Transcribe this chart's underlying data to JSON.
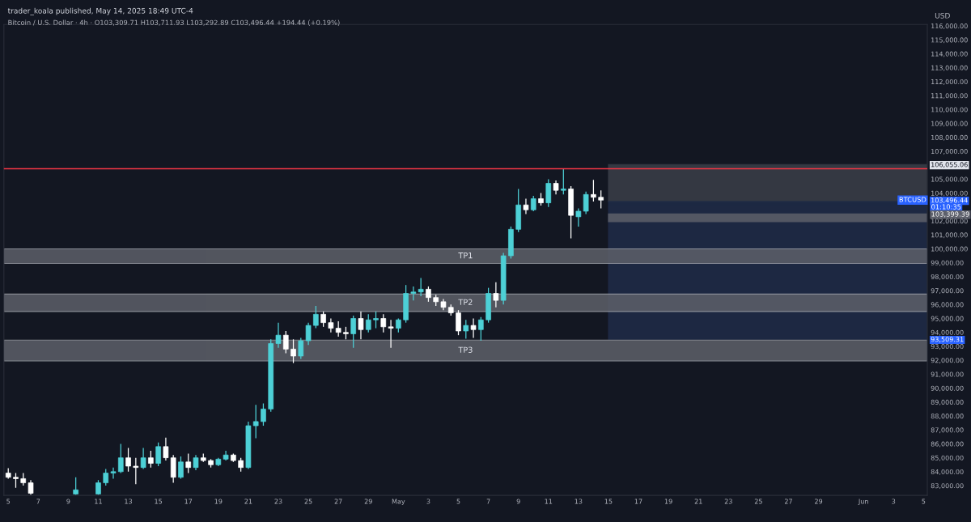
{
  "chart_data": {
    "type": "candlestick",
    "title": "trader_koala published, May 14, 2025 18:49 UTC-4",
    "subtitle": "Bitcoin / U.S. Dollar · 4h · O103,309.71 H103,711.93 L103,292.89 C103,496.44 +194.44 (+0.19%)",
    "ylabel": "USD",
    "x": [
      "2025-04-05T00:00",
      "2025-04-05T12:00",
      "2025-04-06T00:00",
      "2025-04-06T12:00",
      "2025-04-09T12:00",
      "2025-04-11T00:00",
      "2025-04-11T12:00",
      "2025-04-12T00:00",
      "2025-04-12T12:00",
      "2025-04-13T00:00",
      "2025-04-13T12:00",
      "2025-04-14T00:00",
      "2025-04-14T12:00",
      "2025-04-15T00:00",
      "2025-04-15T12:00",
      "2025-04-16T00:00",
      "2025-04-16T12:00",
      "2025-04-17T00:00",
      "2025-04-17T12:00",
      "2025-04-18T00:00",
      "2025-04-18T12:00",
      "2025-04-19T00:00",
      "2025-04-19T12:00",
      "2025-04-20T00:00",
      "2025-04-20T12:00",
      "2025-04-21T00:00",
      "2025-04-21T12:00",
      "2025-04-22T00:00",
      "2025-04-22T12:00",
      "2025-04-23T00:00",
      "2025-04-23T12:00",
      "2025-04-24T00:00",
      "2025-04-24T12:00",
      "2025-04-25T00:00",
      "2025-04-25T12:00",
      "2025-04-26T00:00",
      "2025-04-26T12:00",
      "2025-04-27T00:00",
      "2025-04-27T12:00",
      "2025-04-28T00:00",
      "2025-04-28T12:00",
      "2025-04-29T00:00",
      "2025-04-29T12:00",
      "2025-04-30T00:00",
      "2025-04-30T12:00",
      "2025-05-01T00:00",
      "2025-05-01T12:00",
      "2025-05-02T00:00",
      "2025-05-02T12:00",
      "2025-05-03T00:00",
      "2025-05-03T12:00",
      "2025-05-04T00:00",
      "2025-05-04T12:00",
      "2025-05-05T00:00",
      "2025-05-05T12:00",
      "2025-05-06T00:00",
      "2025-05-06T12:00",
      "2025-05-07T00:00",
      "2025-05-07T12:00",
      "2025-05-08T00:00",
      "2025-05-08T12:00",
      "2025-05-09T00:00",
      "2025-05-09T12:00",
      "2025-05-10T00:00",
      "2025-05-10T12:00",
      "2025-05-11T00:00",
      "2025-05-11T12:00",
      "2025-05-12T00:00",
      "2025-05-12T12:00",
      "2025-05-13T00:00",
      "2025-05-13T12:00",
      "2025-05-14T00:00",
      "2025-05-14T12:00"
    ],
    "ohlc": [
      [
        83900,
        84250,
        83500,
        83600
      ],
      [
        83600,
        83900,
        82850,
        83500
      ],
      [
        83500,
        83900,
        83000,
        83200
      ],
      [
        83200,
        83400,
        82350,
        82450
      ],
      [
        82400,
        83600,
        82350,
        82700
      ],
      [
        82400,
        83400,
        82350,
        83200
      ],
      [
        83200,
        84200,
        83000,
        83900
      ],
      [
        83900,
        84300,
        83500,
        84000
      ],
      [
        84000,
        86000,
        83900,
        85000
      ],
      [
        85000,
        85700,
        84000,
        84400
      ],
      [
        84400,
        85000,
        83100,
        84300
      ],
      [
        84300,
        85700,
        84200,
        85000
      ],
      [
        85000,
        85500,
        84300,
        84600
      ],
      [
        84600,
        86100,
        84400,
        85800
      ],
      [
        85800,
        86450,
        84800,
        85000
      ],
      [
        85000,
        85200,
        83200,
        83600
      ],
      [
        83600,
        85100,
        83500,
        84700
      ],
      [
        84700,
        85300,
        83900,
        84300
      ],
      [
        84300,
        85200,
        84100,
        85000
      ],
      [
        85000,
        85300,
        84700,
        84800
      ],
      [
        84800,
        84900,
        84300,
        84500
      ],
      [
        84500,
        85000,
        84400,
        84900
      ],
      [
        84900,
        85500,
        84800,
        85200
      ],
      [
        85200,
        85300,
        84700,
        84800
      ],
      [
        84800,
        85000,
        84000,
        84300
      ],
      [
        84300,
        87600,
        84200,
        87300
      ],
      [
        87300,
        88800,
        86400,
        87600
      ],
      [
        87600,
        88900,
        87300,
        88500
      ],
      [
        88500,
        93500,
        88300,
        93200
      ],
      [
        93200,
        94700,
        92900,
        93800
      ],
      [
        93800,
        94100,
        92500,
        92800
      ],
      [
        92800,
        93500,
        91800,
        92300
      ],
      [
        92300,
        93600,
        92100,
        93400
      ],
      [
        93400,
        94700,
        93100,
        94500
      ],
      [
        94500,
        95900,
        94300,
        95300
      ],
      [
        95300,
        95500,
        94400,
        94700
      ],
      [
        94700,
        95000,
        94000,
        94300
      ],
      [
        94300,
        94800,
        93700,
        94000
      ],
      [
        94000,
        94400,
        93500,
        93900
      ],
      [
        93900,
        95200,
        92900,
        95000
      ],
      [
        95000,
        95500,
        93500,
        94200
      ],
      [
        94200,
        95300,
        94000,
        94900
      ],
      [
        94900,
        95500,
        94300,
        95000
      ],
      [
        95000,
        95300,
        94000,
        94400
      ],
      [
        94400,
        94900,
        92900,
        94300
      ],
      [
        94300,
        95000,
        94000,
        94900
      ],
      [
        94900,
        97400,
        94700,
        96800
      ],
      [
        96800,
        97300,
        96300,
        96900
      ],
      [
        96900,
        97900,
        96600,
        97100
      ],
      [
        97100,
        97300,
        96200,
        96500
      ],
      [
        96500,
        96700,
        95900,
        96200
      ],
      [
        96200,
        96400,
        95600,
        95800
      ],
      [
        95800,
        96000,
        95200,
        95400
      ],
      [
        95400,
        95600,
        93800,
        94100
      ],
      [
        94100,
        94900,
        93550,
        94500
      ],
      [
        94500,
        95000,
        93600,
        94200
      ],
      [
        94200,
        95100,
        93400,
        94900
      ],
      [
        94900,
        97200,
        94700,
        96800
      ],
      [
        96800,
        97600,
        95800,
        96300
      ],
      [
        96300,
        99700,
        96000,
        99500
      ],
      [
        99500,
        101600,
        99300,
        101400
      ],
      [
        101400,
        104300,
        101200,
        103150
      ],
      [
        103150,
        103600,
        102500,
        102800
      ],
      [
        102800,
        103800,
        102700,
        103600
      ],
      [
        103600,
        104000,
        103100,
        103300
      ],
      [
        103300,
        105000,
        103000,
        104700
      ],
      [
        104700,
        104900,
        103900,
        104200
      ],
      [
        104200,
        105750,
        103900,
        104300
      ],
      [
        104300,
        104500,
        100750,
        102400
      ],
      [
        102300,
        102900,
        101600,
        102700
      ],
      [
        102700,
        104100,
        102500,
        103900
      ],
      [
        103900,
        104950,
        103400,
        103700
      ],
      [
        103700,
        104200,
        102900,
        103496.44
      ]
    ],
    "colors": [
      "#ffffff",
      "#ffffff",
      "#ffffff",
      "#ffffff",
      "#4dd0d6",
      "#4dd0d6",
      "#4dd0d6",
      "#4dd0d6",
      "#4dd0d6",
      "#ffffff",
      "#ffffff",
      "#4dd0d6",
      "#ffffff",
      "#4dd0d6",
      "#ffffff",
      "#ffffff",
      "#4dd0d6",
      "#ffffff",
      "#4dd0d6",
      "#ffffff",
      "#ffffff",
      "#4dd0d6",
      "#4dd0d6",
      "#ffffff",
      "#ffffff",
      "#4dd0d6",
      "#4dd0d6",
      "#4dd0d6",
      "#4dd0d6",
      "#4dd0d6",
      "#ffffff",
      "#ffffff",
      "#4dd0d6",
      "#4dd0d6",
      "#4dd0d6",
      "#ffffff",
      "#ffffff",
      "#ffffff",
      "#ffffff",
      "#4dd0d6",
      "#ffffff",
      "#4dd0d6",
      "#4dd0d6",
      "#ffffff",
      "#ffffff",
      "#4dd0d6",
      "#4dd0d6",
      "#4dd0d6",
      "#4dd0d6",
      "#ffffff",
      "#ffffff",
      "#ffffff",
      "#ffffff",
      "#ffffff",
      "#4dd0d6",
      "#ffffff",
      "#4dd0d6",
      "#4dd0d6",
      "#ffffff",
      "#4dd0d6",
      "#4dd0d6",
      "#4dd0d6",
      "#ffffff",
      "#4dd0d6",
      "#ffffff",
      "#4dd0d6",
      "#ffffff",
      "#4dd0d6",
      "#ffffff",
      "#4dd0d6",
      "#4dd0d6",
      "#ffffff",
      "#ffffff"
    ],
    "xlim": [
      "2025-04-04T17:00",
      "2025-06-05T06:00"
    ],
    "xticks": [
      {
        "value": "2025-04-05",
        "label": "5"
      },
      {
        "value": "2025-04-07",
        "label": "7"
      },
      {
        "value": "2025-04-09",
        "label": "9"
      },
      {
        "value": "2025-04-11",
        "label": "11"
      },
      {
        "value": "2025-04-13",
        "label": "13"
      },
      {
        "value": "2025-04-15",
        "label": "15"
      },
      {
        "value": "2025-04-17",
        "label": "17"
      },
      {
        "value": "2025-04-19",
        "label": "19"
      },
      {
        "value": "2025-04-21",
        "label": "21"
      },
      {
        "value": "2025-04-23",
        "label": "23"
      },
      {
        "value": "2025-04-25",
        "label": "25"
      },
      {
        "value": "2025-04-27",
        "label": "27"
      },
      {
        "value": "2025-04-29",
        "label": "29"
      },
      {
        "value": "2025-05-01",
        "label": "May"
      },
      {
        "value": "2025-05-03",
        "label": "3"
      },
      {
        "value": "2025-05-05",
        "label": "5"
      },
      {
        "value": "2025-05-07",
        "label": "7"
      },
      {
        "value": "2025-05-09",
        "label": "9"
      },
      {
        "value": "2025-05-11",
        "label": "11"
      },
      {
        "value": "2025-05-13",
        "label": "13"
      },
      {
        "value": "2025-05-15",
        "label": "15"
      },
      {
        "value": "2025-05-17",
        "label": "17"
      },
      {
        "value": "2025-05-19",
        "label": "19"
      },
      {
        "value": "2025-05-21",
        "label": "21"
      },
      {
        "value": "2025-05-23",
        "label": "23"
      },
      {
        "value": "2025-05-25",
        "label": "25"
      },
      {
        "value": "2025-05-27",
        "label": "27"
      },
      {
        "value": "2025-05-29",
        "label": "29"
      },
      {
        "value": "2025-06-01",
        "label": "Jun"
      },
      {
        "value": "2025-06-03",
        "label": "3"
      },
      {
        "value": "2025-06-05",
        "label": "5"
      }
    ],
    "ylim": [
      82300,
      116100
    ],
    "yticks": [
      {
        "value": 83000,
        "label": "83,000.00"
      },
      {
        "value": 84000,
        "label": "84,000.00"
      },
      {
        "value": 85000,
        "label": "85,000.00"
      },
      {
        "value": 86000,
        "label": "86,000.00"
      },
      {
        "value": 87000,
        "label": "87,000.00"
      },
      {
        "value": 88000,
        "label": "88,000.00"
      },
      {
        "value": 89000,
        "label": "89,000.00"
      },
      {
        "value": 90000,
        "label": "90,000.00"
      },
      {
        "value": 91000,
        "label": "91,000.00"
      },
      {
        "value": 92000,
        "label": "92,000.00"
      },
      {
        "value": 93000,
        "label": "93,000.00"
      },
      {
        "value": 93509.31,
        "label": "93,509.31"
      },
      {
        "value": 94000,
        "label": "94,000.00"
      },
      {
        "value": 95000,
        "label": "95,000.00"
      },
      {
        "value": 96000,
        "label": "96,000.00"
      },
      {
        "value": 97000,
        "label": "97,000.00"
      },
      {
        "value": 98000,
        "label": "98,000.00"
      },
      {
        "value": 99000,
        "label": "99,000.00"
      },
      {
        "value": 100000,
        "label": "100,000.00"
      },
      {
        "value": 101000,
        "label": "101,000.00"
      },
      {
        "value": 102000,
        "label": "102,000.00"
      },
      {
        "value": 103496.44,
        "label": "103,496.44"
      },
      {
        "value": 104000,
        "label": "104,000.00"
      },
      {
        "value": 105000,
        "label": "105,000.00"
      },
      {
        "value": 106055.06,
        "label": "106,055.06"
      },
      {
        "value": 107000,
        "label": "107,000.00"
      },
      {
        "value": 108000,
        "label": "108,000.00"
      },
      {
        "value": 109000,
        "label": "109,000.00"
      },
      {
        "value": 110000,
        "label": "110,000.00"
      },
      {
        "value": 111000,
        "label": "111,000.00"
      },
      {
        "value": 112000,
        "label": "112,000.00"
      },
      {
        "value": 113000,
        "label": "113,000.00"
      },
      {
        "value": 114000,
        "label": "114,000.00"
      },
      {
        "value": 115000,
        "label": "115,000.00"
      },
      {
        "value": 116000,
        "label": "116,000.00"
      }
    ],
    "bands": [
      {
        "axis": "y",
        "from": 103399.39,
        "to": 106055.06,
        "color": "#3a3e48"
      },
      {
        "axis": "y",
        "from": 93509.31,
        "to": 103399.39,
        "color": "#1f2c48"
      },
      {
        "axis": "y",
        "from": 98950,
        "to": 100000,
        "label": "TP1",
        "color": "#5d6069"
      },
      {
        "axis": "y",
        "from": 95500,
        "to": 96750,
        "label": "TP2",
        "color": "#5d6069"
      },
      {
        "axis": "y",
        "from": 91950,
        "to": 93450,
        "label": "TP3",
        "color": "#5d6069"
      },
      {
        "axis": "y",
        "from": 101950,
        "to": 102500,
        "color": "#5d6069"
      }
    ],
    "ref_lines": [
      {
        "axis": "y",
        "value": 105750,
        "color": "#f23645"
      }
    ],
    "annotations": [
      "BTCUSD",
      "01:10:35",
      "103,399.39"
    ]
  }
}
